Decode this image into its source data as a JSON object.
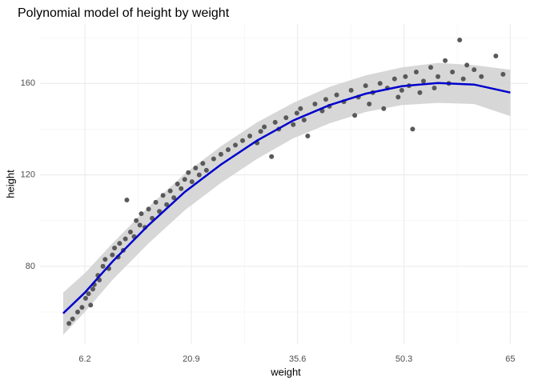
{
  "chart_data": {
    "type": "scatter",
    "title": "Polynomial model of height by weight",
    "x_label": "weight",
    "y_label": "height",
    "xlim": [
      0,
      67.5
    ],
    "ylim": [
      46,
      186
    ],
    "xticks": [
      6.2,
      20.9,
      35.6,
      50.3,
      65
    ],
    "yticks": [
      80,
      120,
      160
    ],
    "grid": true,
    "point_color": "#595959",
    "x": [
      4.0,
      4.5,
      5.2,
      5.8,
      6.3,
      6.7,
      7.0,
      7.3,
      7.5,
      8.0,
      8.2,
      8.7,
      9.0,
      9.5,
      10.0,
      10.3,
      10.8,
      11.0,
      11.5,
      11.8,
      12.0,
      12.5,
      13.0,
      13.3,
      13.8,
      14.0,
      14.5,
      15.0,
      15.5,
      16.0,
      16.5,
      17.0,
      17.5,
      18.0,
      18.5,
      19.0,
      19.5,
      20.0,
      20.5,
      21.0,
      21.5,
      22.0,
      22.5,
      23.0,
      24.0,
      25.0,
      26.0,
      27.0,
      28.0,
      29.0,
      30.0,
      30.5,
      31.0,
      32.0,
      32.5,
      33.0,
      34.0,
      35.0,
      35.5,
      36.0,
      36.5,
      37.0,
      38.0,
      39.0,
      39.5,
      40.0,
      41.0,
      42.0,
      43.0,
      43.5,
      44.0,
      45.0,
      45.5,
      46.0,
      47.0,
      47.5,
      48.0,
      49.0,
      49.5,
      50.0,
      50.5,
      51.0,
      51.5,
      52.0,
      52.5,
      53.0,
      54.0,
      54.5,
      55.0,
      56.0,
      56.5,
      57.0,
      58.0,
      58.5,
      59.0,
      60.0,
      61.0,
      63.0,
      64.0
    ],
    "values": [
      55,
      57,
      60,
      62,
      66,
      68,
      63,
      70,
      72,
      76,
      74,
      80,
      83,
      79,
      85,
      88,
      84,
      90,
      87,
      92,
      109,
      95,
      93,
      100,
      98,
      103,
      97,
      105,
      101,
      108,
      104,
      111,
      107,
      113,
      110,
      116,
      114,
      118,
      121,
      117,
      123,
      120,
      125,
      122,
      127,
      129,
      131,
      133,
      135,
      137,
      134,
      139,
      141,
      128,
      143,
      140,
      145,
      142,
      147,
      149,
      144,
      137,
      151,
      148,
      153,
      150,
      155,
      152,
      157,
      146,
      154,
      159,
      151,
      156,
      160,
      149,
      158,
      162,
      154,
      157,
      163,
      159,
      140,
      165,
      156,
      161,
      167,
      158,
      163,
      170,
      160,
      165,
      179,
      162,
      168,
      166,
      163,
      172,
      164
    ],
    "fit": {
      "color": "#0000cc",
      "band_color": "#d3d3d3",
      "x": [
        3.2,
        6.2,
        10,
        15,
        20,
        25,
        30,
        35,
        40,
        45,
        50,
        55,
        60,
        65
      ],
      "values": [
        59.4,
        68.5,
        82,
        98,
        112.5,
        124.5,
        135,
        143.8,
        150.5,
        155.5,
        158.8,
        160.2,
        159.5,
        156
      ],
      "lower": [
        50,
        60,
        74,
        90,
        104.5,
        116.5,
        127,
        136,
        142.5,
        147.5,
        150.5,
        151.5,
        151,
        145.7
      ],
      "upper": [
        68.5,
        77,
        90,
        106,
        120.5,
        132.5,
        143,
        151.5,
        158.5,
        163.5,
        167,
        169,
        168,
        166
      ]
    }
  }
}
